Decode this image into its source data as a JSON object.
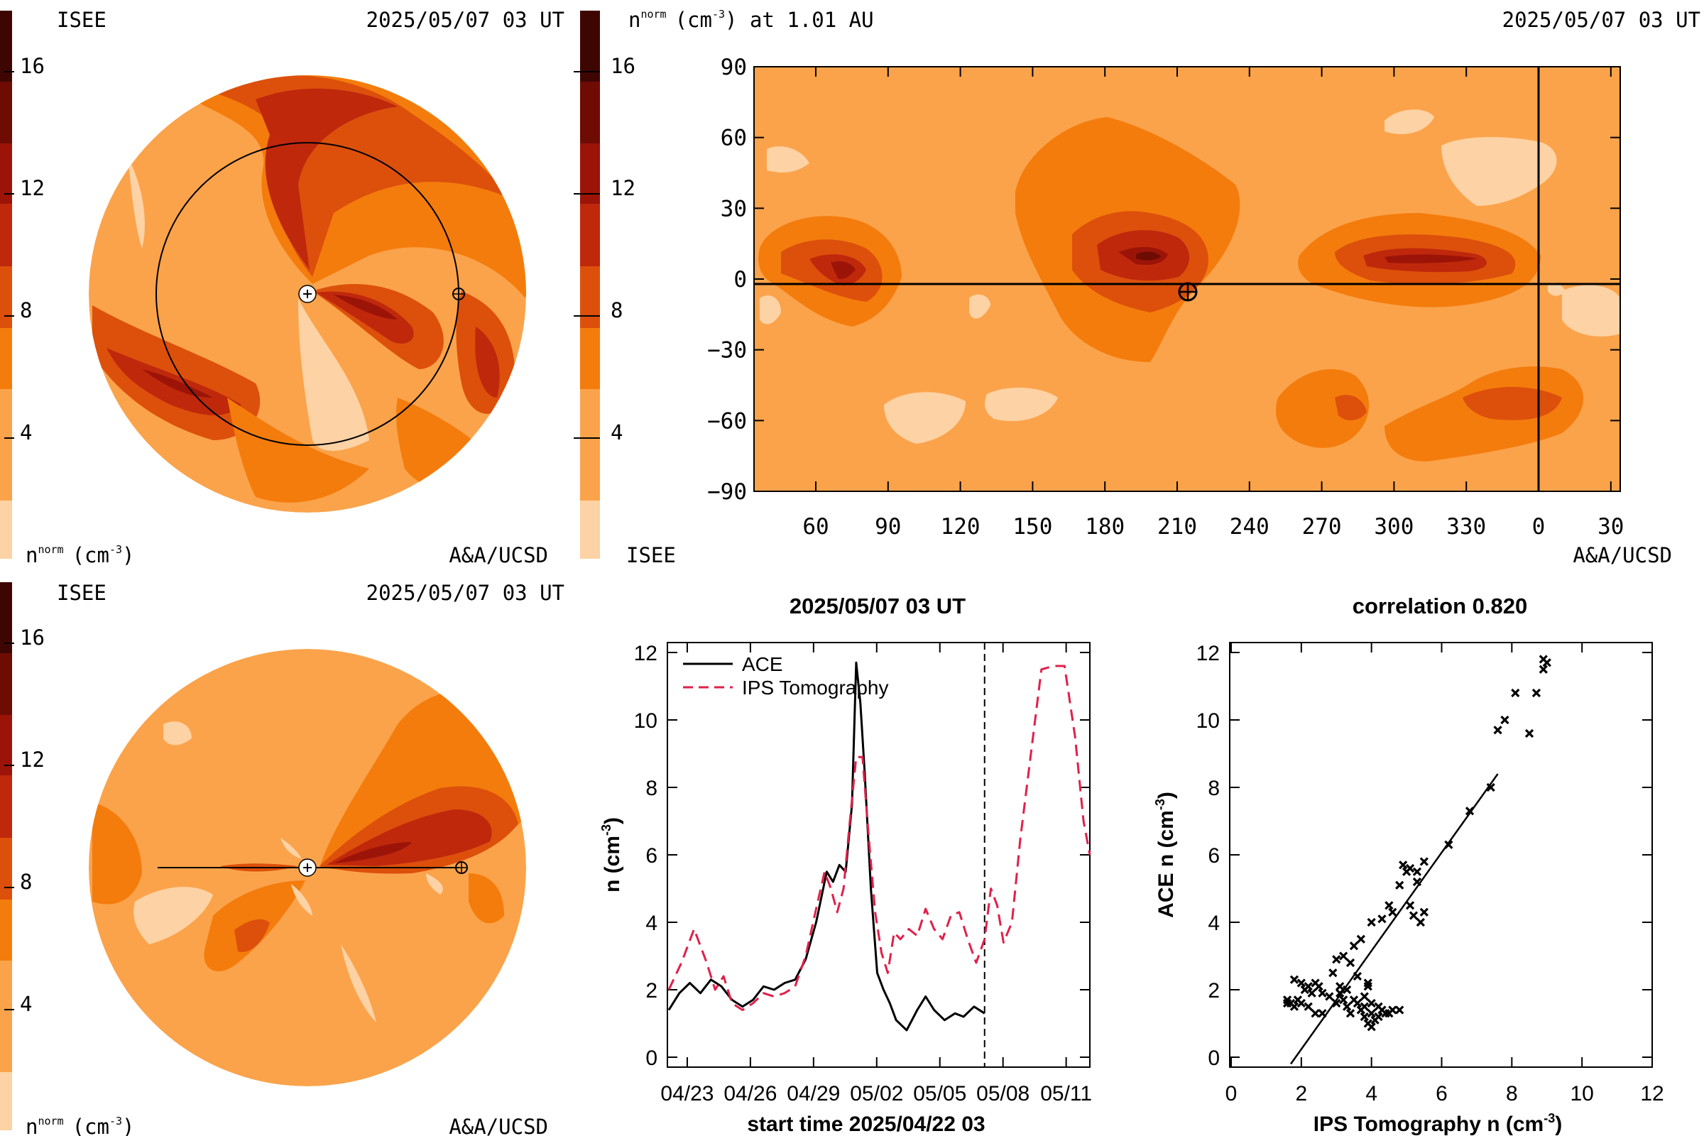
{
  "colors": {
    "levels": [
      "#fdd2a4",
      "#fba34b",
      "#f47c0c",
      "#dc500c",
      "#c0280c",
      "#9c1408",
      "#6e0c04",
      "#3e0602"
    ],
    "ace": "#000000",
    "ips": "#e0204a"
  },
  "panel_tl": {
    "org": "ISEE",
    "datetime": "2025/05/07 03 UT",
    "cbar_ticks": [
      "16",
      "12",
      "8",
      "4"
    ],
    "unit_base": "n",
    "unit_sup": "norm",
    "unit_rest": "(cm",
    "unit_exp": "-3",
    "unit_close": ")",
    "credit": "A&A/UCSD"
  },
  "panel_tr": {
    "title_base": "n",
    "title_sup": "norm",
    "title_rest": "(cm",
    "title_exp": "-3",
    "title_tail": ") at 1.01 AU",
    "datetime": "2025/05/07 03 UT",
    "cbar_ticks": [
      "16",
      "12",
      "8",
      "4"
    ],
    "org": "ISEE",
    "credit": "A&A/UCSD",
    "y_ticks": [
      "90",
      "60",
      "30",
      "0",
      "−30",
      "−60",
      "−90"
    ],
    "x_ticks": [
      "60",
      "90",
      "120",
      "150",
      "180",
      "210",
      "240",
      "270",
      "300",
      "330",
      "0",
      "30"
    ]
  },
  "panel_bl": {
    "org": "ISEE",
    "datetime": "2025/05/07 03 UT",
    "cbar_ticks": [
      "16",
      "12",
      "8",
      "4"
    ],
    "unit_base": "n",
    "unit_sup": "norm",
    "unit_rest": "(cm",
    "unit_exp": "-3",
    "unit_close": ")",
    "credit": "A&A/UCSD"
  },
  "chart_data": [
    {
      "type": "line",
      "title": "2025/05/07 03 UT",
      "xlabel": "start time 2025/04/22 03",
      "ylabel_base": "n (cm",
      "ylabel_exp": "-3",
      "ylabel_close": ")",
      "x_tick_labels": [
        "04/23",
        "04/26",
        "04/29",
        "05/02",
        "05/05",
        "05/08",
        "05/11"
      ],
      "x_tick_days": [
        0.875,
        3.875,
        6.875,
        9.875,
        12.875,
        15.875,
        18.875
      ],
      "y_ticks": [
        0,
        2,
        4,
        6,
        8,
        10,
        12
      ],
      "xlim_days": [
        0,
        20
      ],
      "ylim": [
        0,
        12
      ],
      "now_marker_day": 15,
      "series": [
        {
          "name": "ACE",
          "style": "solid",
          "x": [
            0,
            0.5,
            1,
            1.5,
            2,
            2.5,
            3,
            3.5,
            4,
            4.5,
            5,
            5.5,
            6,
            6.5,
            7,
            7.5,
            7.8,
            8.1,
            8.4,
            8.7,
            8.9,
            9.1,
            9.3,
            9.6,
            9.9,
            10.2,
            10.5,
            10.8,
            11.3,
            11.8,
            12.2,
            12.6,
            13.1,
            13.6,
            14,
            14.5,
            15
          ],
          "y": [
            1.4,
            1.9,
            2.2,
            1.9,
            2.3,
            2.1,
            1.7,
            1.5,
            1.7,
            2.1,
            2.0,
            2.2,
            2.3,
            2.9,
            4.0,
            5.5,
            5.2,
            5.7,
            5.5,
            7.5,
            11.7,
            10.5,
            8.5,
            5.0,
            2.5,
            2.0,
            1.6,
            1.1,
            0.8,
            1.4,
            1.8,
            1.4,
            1.1,
            1.3,
            1.2,
            1.5,
            1.3
          ]
        },
        {
          "name": "IPS Tomography",
          "style": "dashed",
          "x": [
            0,
            0.6,
            1.2,
            1.8,
            2.2,
            2.6,
            3.0,
            3.5,
            4.0,
            4.5,
            5.0,
            5.5,
            6.0,
            6.5,
            7.0,
            7.4,
            7.7,
            8.0,
            8.3,
            8.6,
            8.9,
            9.2,
            9.5,
            9.8,
            10.1,
            10.4,
            10.7,
            11.0,
            11.4,
            11.8,
            12.2,
            12.6,
            13.0,
            13.4,
            13.8,
            14.2,
            14.6,
            15.0,
            15.3,
            15.6,
            15.9,
            16.3,
            16.7,
            17.2,
            17.7,
            18.3,
            18.8,
            19.3,
            19.7,
            20.0
          ],
          "y": [
            2.0,
            2.8,
            3.8,
            2.8,
            2.0,
            2.4,
            1.6,
            1.4,
            1.6,
            1.9,
            1.8,
            1.9,
            2.1,
            3.0,
            4.4,
            5.5,
            5.0,
            4.3,
            5.0,
            7.0,
            8.9,
            8.9,
            6.5,
            4.3,
            3.1,
            2.5,
            3.7,
            3.5,
            3.8,
            3.6,
            4.4,
            3.8,
            3.5,
            4.2,
            4.3,
            3.5,
            2.8,
            3.5,
            5.0,
            4.5,
            3.4,
            4.0,
            6.5,
            9.0,
            11.5,
            11.6,
            11.6,
            9.5,
            7.0,
            6.0
          ]
        }
      ]
    },
    {
      "type": "scatter",
      "title": "correlation 0.820",
      "xlabel_base": "IPS Tomography n (cm",
      "xlabel_exp": "-3",
      "xlabel_close": ")",
      "ylabel_base": "ACE n (cm",
      "ylabel_exp": "-3",
      "ylabel_close": ")",
      "x_ticks": [
        0,
        2,
        4,
        6,
        8,
        10,
        12
      ],
      "y_ticks": [
        0,
        2,
        4,
        6,
        8,
        10,
        12
      ],
      "xlim": [
        0,
        12
      ],
      "ylim": [
        0,
        12
      ],
      "fit_line": {
        "x": [
          1.7,
          7.6
        ],
        "y": [
          -0.2,
          8.4
        ]
      },
      "points": [
        [
          1.6,
          1.6
        ],
        [
          1.6,
          1.7
        ],
        [
          1.7,
          1.6
        ],
        [
          1.8,
          1.5
        ],
        [
          1.9,
          1.7
        ],
        [
          2.0,
          1.6
        ],
        [
          1.8,
          2.3
        ],
        [
          2.0,
          2.2
        ],
        [
          2.1,
          2.0
        ],
        [
          2.2,
          2.1
        ],
        [
          2.3,
          1.9
        ],
        [
          2.4,
          2.2
        ],
        [
          2.5,
          2.1
        ],
        [
          2.6,
          1.9
        ],
        [
          2.2,
          1.5
        ],
        [
          2.4,
          1.3
        ],
        [
          2.6,
          1.3
        ],
        [
          2.8,
          1.8
        ],
        [
          3.0,
          1.6
        ],
        [
          3.1,
          1.9
        ],
        [
          3.2,
          1.7
        ],
        [
          3.3,
          1.5
        ],
        [
          3.4,
          1.3
        ],
        [
          3.5,
          1.7
        ],
        [
          3.6,
          1.6
        ],
        [
          3.7,
          1.4
        ],
        [
          3.8,
          1.2
        ],
        [
          3.9,
          1.0
        ],
        [
          4.0,
          0.9
        ],
        [
          4.1,
          1.1
        ],
        [
          4.2,
          1.2
        ],
        [
          4.3,
          1.4
        ],
        [
          4.4,
          1.3
        ],
        [
          4.5,
          1.3
        ],
        [
          4.6,
          1.4
        ],
        [
          4.8,
          1.4
        ],
        [
          3.8,
          1.8
        ],
        [
          4.0,
          1.3
        ],
        [
          3.9,
          2.1
        ],
        [
          4.2,
          1.5
        ],
        [
          2.9,
          2.5
        ],
        [
          3.0,
          2.9
        ],
        [
          3.2,
          3.0
        ],
        [
          3.4,
          2.8
        ],
        [
          3.5,
          3.3
        ],
        [
          3.7,
          3.5
        ],
        [
          3.6,
          2.4
        ],
        [
          3.9,
          2.2
        ],
        [
          4.0,
          1.6
        ],
        [
          3.3,
          2.0
        ],
        [
          3.1,
          2.1
        ],
        [
          3.8,
          1.5
        ],
        [
          4.0,
          4.0
        ],
        [
          4.3,
          4.1
        ],
        [
          4.5,
          4.5
        ],
        [
          4.6,
          4.3
        ],
        [
          4.8,
          5.1
        ],
        [
          5.0,
          5.5
        ],
        [
          4.9,
          5.7
        ],
        [
          5.1,
          5.6
        ],
        [
          5.3,
          5.5
        ],
        [
          5.5,
          5.8
        ],
        [
          5.3,
          5.2
        ],
        [
          5.2,
          4.2
        ],
        [
          5.4,
          4.0
        ],
        [
          5.5,
          4.3
        ],
        [
          5.1,
          4.5
        ],
        [
          6.2,
          6.3
        ],
        [
          6.8,
          7.3
        ],
        [
          7.4,
          8.0
        ],
        [
          7.6,
          9.7
        ],
        [
          7.8,
          10.0
        ],
        [
          8.1,
          10.8
        ],
        [
          8.5,
          9.6
        ],
        [
          8.7,
          10.8
        ],
        [
          8.9,
          11.5
        ],
        [
          9.0,
          11.7
        ],
        [
          8.9,
          11.8
        ]
      ]
    }
  ]
}
